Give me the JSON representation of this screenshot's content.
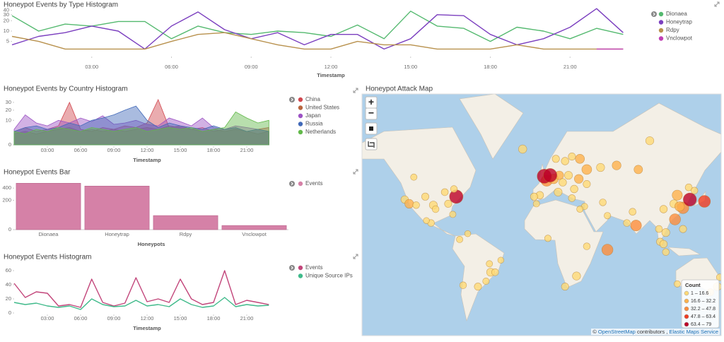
{
  "chart_data": [
    {
      "type": "line",
      "title": "Honeypot Events by Type Histogram",
      "xlabel": "Timestamp",
      "scale": "log",
      "x": [
        0,
        1,
        2,
        3,
        4,
        5,
        6,
        7,
        8,
        9,
        10,
        11,
        12,
        13,
        14,
        15,
        16,
        17,
        18,
        19,
        20,
        21,
        22,
        23
      ],
      "xlim": [
        0,
        24
      ],
      "xticks": [
        {
          "value": 3,
          "label": "03:00"
        },
        {
          "value": 6,
          "label": "06:00"
        },
        {
          "value": 9,
          "label": "09:00"
        },
        {
          "value": 12,
          "label": "12:00"
        },
        {
          "value": 15,
          "label": "15:00"
        },
        {
          "value": 18,
          "label": "18:00"
        },
        {
          "value": 21,
          "label": "21:00"
        }
      ],
      "ylim": [
        2,
        50
      ],
      "yticks": [
        5,
        10,
        20,
        30,
        40
      ],
      "series": [
        {
          "name": "Dionaea",
          "color": "#54b96f",
          "values": [
            28,
            10,
            16,
            14,
            19,
            19,
            6,
            14,
            9,
            8,
            10,
            9,
            7,
            15,
            6,
            38,
            14,
            12,
            5,
            13,
            10,
            6,
            12,
            8
          ]
        },
        {
          "name": "Honeytrap",
          "color": "#7b3fbf",
          "values": [
            4,
            7,
            9,
            14,
            10,
            3,
            14,
            36,
            11,
            6,
            9,
            4,
            8,
            8,
            3,
            6,
            30,
            28,
            8,
            4,
            6,
            13,
            45,
            9
          ]
        },
        {
          "name": "Rdpy",
          "color": "#b8914d",
          "values": [
            7,
            5,
            3,
            3,
            3,
            3,
            5,
            8,
            9,
            6,
            4,
            3,
            3,
            5,
            4,
            4,
            3,
            3,
            3,
            4,
            3,
            3,
            3,
            3
          ]
        },
        {
          "name": "Vnclowpot",
          "color": "#c03fb4",
          "values": [
            null,
            null,
            null,
            null,
            null,
            null,
            null,
            null,
            null,
            null,
            null,
            null,
            null,
            null,
            null,
            null,
            null,
            null,
            null,
            null,
            null,
            null,
            3,
            3
          ]
        }
      ]
    },
    {
      "type": "area",
      "title": "Honeypot Events by Country Histogram",
      "xlabel": "Timestamp",
      "scale": "sqrt",
      "x": [
        0,
        1,
        2,
        3,
        4,
        5,
        6,
        7,
        8,
        9,
        10,
        11,
        12,
        13,
        14,
        15,
        16,
        17,
        18,
        19,
        20,
        21,
        22,
        23
      ],
      "xlim": [
        0,
        24
      ],
      "xticks": [
        {
          "value": 3,
          "label": "03:00"
        },
        {
          "value": 6,
          "label": "06:00"
        },
        {
          "value": 9,
          "label": "09:00"
        },
        {
          "value": 12,
          "label": "12:00"
        },
        {
          "value": 15,
          "label": "15:00"
        },
        {
          "value": 18,
          "label": "18:00"
        },
        {
          "value": 21,
          "label": "21:00"
        }
      ],
      "ylim": [
        0,
        34
      ],
      "yticks": [
        0,
        10,
        20,
        30
      ],
      "series": [
        {
          "name": "China",
          "color": "#d0464e",
          "values": [
            3,
            5,
            3,
            4,
            6,
            30,
            4,
            3,
            5,
            4,
            6,
            5,
            8,
            34,
            5,
            6,
            4,
            5,
            3,
            4,
            5,
            3,
            4,
            5
          ]
        },
        {
          "name": "United States",
          "color": "#b8653e",
          "values": [
            2,
            3,
            2,
            3,
            4,
            5,
            3,
            4,
            3,
            4,
            3,
            4,
            5,
            4,
            6,
            5,
            4,
            3,
            4,
            3,
            4,
            3,
            2,
            3
          ]
        },
        {
          "name": "Japan",
          "color": "#9c52c4",
          "values": [
            4,
            15,
            8,
            6,
            10,
            8,
            12,
            9,
            14,
            7,
            8,
            10,
            7,
            6,
            12,
            9,
            6,
            12,
            5,
            4,
            6,
            5,
            4,
            3
          ]
        },
        {
          "name": "Russia",
          "color": "#4169b8",
          "values": [
            3,
            5,
            6,
            4,
            5,
            8,
            6,
            10,
            12,
            15,
            20,
            25,
            10,
            5,
            8,
            6,
            5,
            4,
            6,
            4,
            5,
            3,
            4,
            3
          ]
        },
        {
          "name": "Netherlands",
          "color": "#62b94a",
          "values": [
            3,
            2,
            4,
            3,
            5,
            4,
            3,
            5,
            4,
            3,
            4,
            5,
            3,
            4,
            5,
            4,
            5,
            3,
            4,
            5,
            18,
            12,
            8,
            10
          ]
        }
      ]
    },
    {
      "type": "bar",
      "title": "Honeypot Events Bar",
      "xlabel": "Honeypots",
      "scale": "sqrt",
      "categories": [
        "Dionaea",
        "Honeytrap",
        "Rdpy",
        "Vnclowpot"
      ],
      "ylim": [
        0,
        520
      ],
      "yticks": [
        0,
        200,
        400
      ],
      "series": [
        {
          "name": "Events",
          "color": "#d581a7",
          "values": [
            500,
            441,
            46,
            4
          ]
        }
      ]
    },
    {
      "type": "line",
      "title": "Honeypot Events Histogram",
      "xlabel": "Timestamp",
      "x": [
        0,
        1,
        2,
        3,
        4,
        5,
        6,
        7,
        8,
        9,
        10,
        11,
        12,
        13,
        14,
        15,
        16,
        17,
        18,
        19,
        20,
        21,
        22,
        23
      ],
      "xlim": [
        0,
        24
      ],
      "xticks": [
        {
          "value": 3,
          "label": "03:00"
        },
        {
          "value": 6,
          "label": "06:00"
        },
        {
          "value": 9,
          "label": "09:00"
        },
        {
          "value": 12,
          "label": "12:00"
        },
        {
          "value": 15,
          "label": "15:00"
        },
        {
          "value": 18,
          "label": "18:00"
        },
        {
          "value": 21,
          "label": "21:00"
        }
      ],
      "ylim": [
        0,
        65
      ],
      "yticks": [
        0,
        20,
        40,
        60
      ],
      "series": [
        {
          "name": "Events",
          "color": "#c2457a",
          "values": [
            42,
            22,
            30,
            28,
            10,
            12,
            8,
            48,
            15,
            10,
            14,
            50,
            16,
            20,
            15,
            48,
            20,
            12,
            15,
            60,
            12,
            18,
            15,
            12
          ]
        },
        {
          "name": "Unique Source IPs",
          "color": "#3fba8a",
          "values": [
            15,
            12,
            14,
            10,
            8,
            10,
            5,
            20,
            12,
            9,
            10,
            18,
            10,
            12,
            9,
            20,
            12,
            8,
            10,
            22,
            9,
            12,
            10,
            11
          ]
        }
      ]
    }
  ],
  "map": {
    "title": "Honeypot Attack Map",
    "controls": [
      "+",
      "−"
    ],
    "legend": {
      "title": "Count",
      "items": [
        {
          "label": "1 – 16.6",
          "from": 1,
          "to": 16.6,
          "color": "#fed976"
        },
        {
          "label": "16.6 – 32.2",
          "from": 16.6,
          "to": 32.2,
          "color": "#feb24c"
        },
        {
          "label": "32.2 – 47.8",
          "from": 32.2,
          "to": 47.8,
          "color": "#fd8d3c"
        },
        {
          "label": "47.8 – 63.4",
          "from": 47.8,
          "to": 63.4,
          "color": "#f03b20"
        },
        {
          "label": "63.4 – 79",
          "from": 63.4,
          "to": 79,
          "color": "#bd0026"
        }
      ]
    },
    "attribution": [
      "©",
      "OpenStreetMap",
      "contributors ,",
      "Elastic Maps Service"
    ],
    "points": [
      {
        "lon": -122,
        "lat": 37,
        "count": 12
      },
      {
        "lon": -118,
        "lat": 34,
        "count": 20
      },
      {
        "lon": -112,
        "lat": 33,
        "count": 8
      },
      {
        "lon": -97,
        "lat": 33,
        "count": 14
      },
      {
        "lon": -104,
        "lat": 39,
        "count": 10
      },
      {
        "lon": -87,
        "lat": 42,
        "count": 9
      },
      {
        "lon": -77,
        "lat": 39,
        "count": 70
      },
      {
        "lon": -84,
        "lat": 34,
        "count": 10
      },
      {
        "lon": -80,
        "lat": 26,
        "count": 6
      },
      {
        "lon": -95,
        "lat": 30,
        "count": 8
      },
      {
        "lon": -79,
        "lat": 44,
        "count": 8
      },
      {
        "lon": -114,
        "lat": 51,
        "count": 6
      },
      {
        "lon": -99,
        "lat": 19,
        "count": 8
      },
      {
        "lon": -103,
        "lat": 21,
        "count": 5
      },
      {
        "lon": -74,
        "lat": 5,
        "count": 6
      },
      {
        "lon": -67,
        "lat": 10,
        "count": 5
      },
      {
        "lon": -47,
        "lat": -23,
        "count": 14
      },
      {
        "lon": -43,
        "lat": -23,
        "count": 9
      },
      {
        "lon": -48,
        "lat": -16,
        "count": 6
      },
      {
        "lon": -38,
        "lat": -13,
        "count": 5
      },
      {
        "lon": -51,
        "lat": -30,
        "count": 7
      },
      {
        "lon": -58,
        "lat": -34,
        "count": 10
      },
      {
        "lon": -71,
        "lat": -33,
        "count": 8
      },
      {
        "lon": -19,
        "lat": 64,
        "count": 16
      },
      {
        "lon": 2,
        "lat": 49,
        "count": 40
      },
      {
        "lon": 8,
        "lat": 50,
        "count": 25
      },
      {
        "lon": 13,
        "lat": 52,
        "count": 18
      },
      {
        "lon": 21,
        "lat": 52,
        "count": 14
      },
      {
        "lon": 30,
        "lat": 50,
        "count": 20
      },
      {
        "lon": 37,
        "lat": 55,
        "count": 28
      },
      {
        "lon": 31,
        "lat": 60,
        "count": 22
      },
      {
        "lon": 18,
        "lat": 59,
        "count": 12
      },
      {
        "lon": 10,
        "lat": 60,
        "count": 10
      },
      {
        "lon": 24,
        "lat": 61,
        "count": 10
      },
      {
        "lon": 16,
        "lat": 48,
        "count": 12
      },
      {
        "lon": 26,
        "lat": 44,
        "count": 12
      },
      {
        "lon": 24,
        "lat": 38,
        "count": 9
      },
      {
        "lon": -4,
        "lat": 40,
        "count": 12
      },
      {
        "lon": -9,
        "lat": 39,
        "count": 10
      },
      {
        "lon": 12,
        "lat": 42,
        "count": 14
      },
      {
        "lon": 49,
        "lat": 56,
        "count": 15
      },
      {
        "lon": 63,
        "lat": 57,
        "count": 20
      },
      {
        "lon": 82,
        "lat": 55,
        "count": 18
      },
      {
        "lon": 92,
        "lat": 67,
        "count": 15
      },
      {
        "lon": 37,
        "lat": 47,
        "count": 10
      },
      {
        "lon": 35,
        "lat": 32,
        "count": 6
      },
      {
        "lon": 51,
        "lat": 35,
        "count": 8
      },
      {
        "lon": 55,
        "lat": 25,
        "count": 7
      },
      {
        "lon": 77,
        "lat": 28,
        "count": 9
      },
      {
        "lon": 72,
        "lat": 19,
        "count": 8
      },
      {
        "lon": 80,
        "lat": 17,
        "count": 38
      },
      {
        "lon": 55,
        "lat": -4,
        "count": 40
      },
      {
        "lon": 116,
        "lat": 40,
        "count": 30
      },
      {
        "lon": 121,
        "lat": 31,
        "count": 45
      },
      {
        "lon": 114,
        "lat": 22,
        "count": 40
      },
      {
        "lon": 104,
        "lat": 30,
        "count": 12
      },
      {
        "lon": 126,
        "lat": 45,
        "count": 9
      },
      {
        "lon": 113,
        "lat": 34,
        "count": 14
      },
      {
        "lon": 118,
        "lat": 32,
        "count": 25
      },
      {
        "lon": 127,
        "lat": 37,
        "count": 66
      },
      {
        "lon": 139.7,
        "lat": 35.7,
        "count": 50
      },
      {
        "lon": 106,
        "lat": 11,
        "count": 14
      },
      {
        "lon": 101,
        "lat": 3,
        "count": 10
      },
      {
        "lon": 104,
        "lat": 1,
        "count": 12
      },
      {
        "lon": 100,
        "lat": 14,
        "count": 9
      },
      {
        "lon": 106,
        "lat": -6,
        "count": 8
      },
      {
        "lon": 121,
        "lat": 14,
        "count": 10
      },
      {
        "lon": 31,
        "lat": 30,
        "count": 6
      },
      {
        "lon": 3,
        "lat": 6,
        "count": 7
      },
      {
        "lon": 37,
        "lat": -1,
        "count": 8
      },
      {
        "lon": 28,
        "lat": -26,
        "count": 15
      },
      {
        "lon": 18,
        "lat": -34,
        "count": 10
      },
      {
        "lon": -7,
        "lat": 34,
        "count": 6
      },
      {
        "lon": 151,
        "lat": -34,
        "count": 14
      },
      {
        "lon": 145,
        "lat": -38,
        "count": 9
      },
      {
        "lon": 116,
        "lat": -32,
        "count": 6
      },
      {
        "lon": 153,
        "lat": -27,
        "count": 7
      },
      {
        "lon": 131,
        "lat": 43,
        "count": 8
      },
      {
        "lon": -0.1,
        "lat": 51.5,
        "count": 79
      },
      {
        "lon": 5,
        "lat": 52,
        "count": 72
      }
    ]
  }
}
